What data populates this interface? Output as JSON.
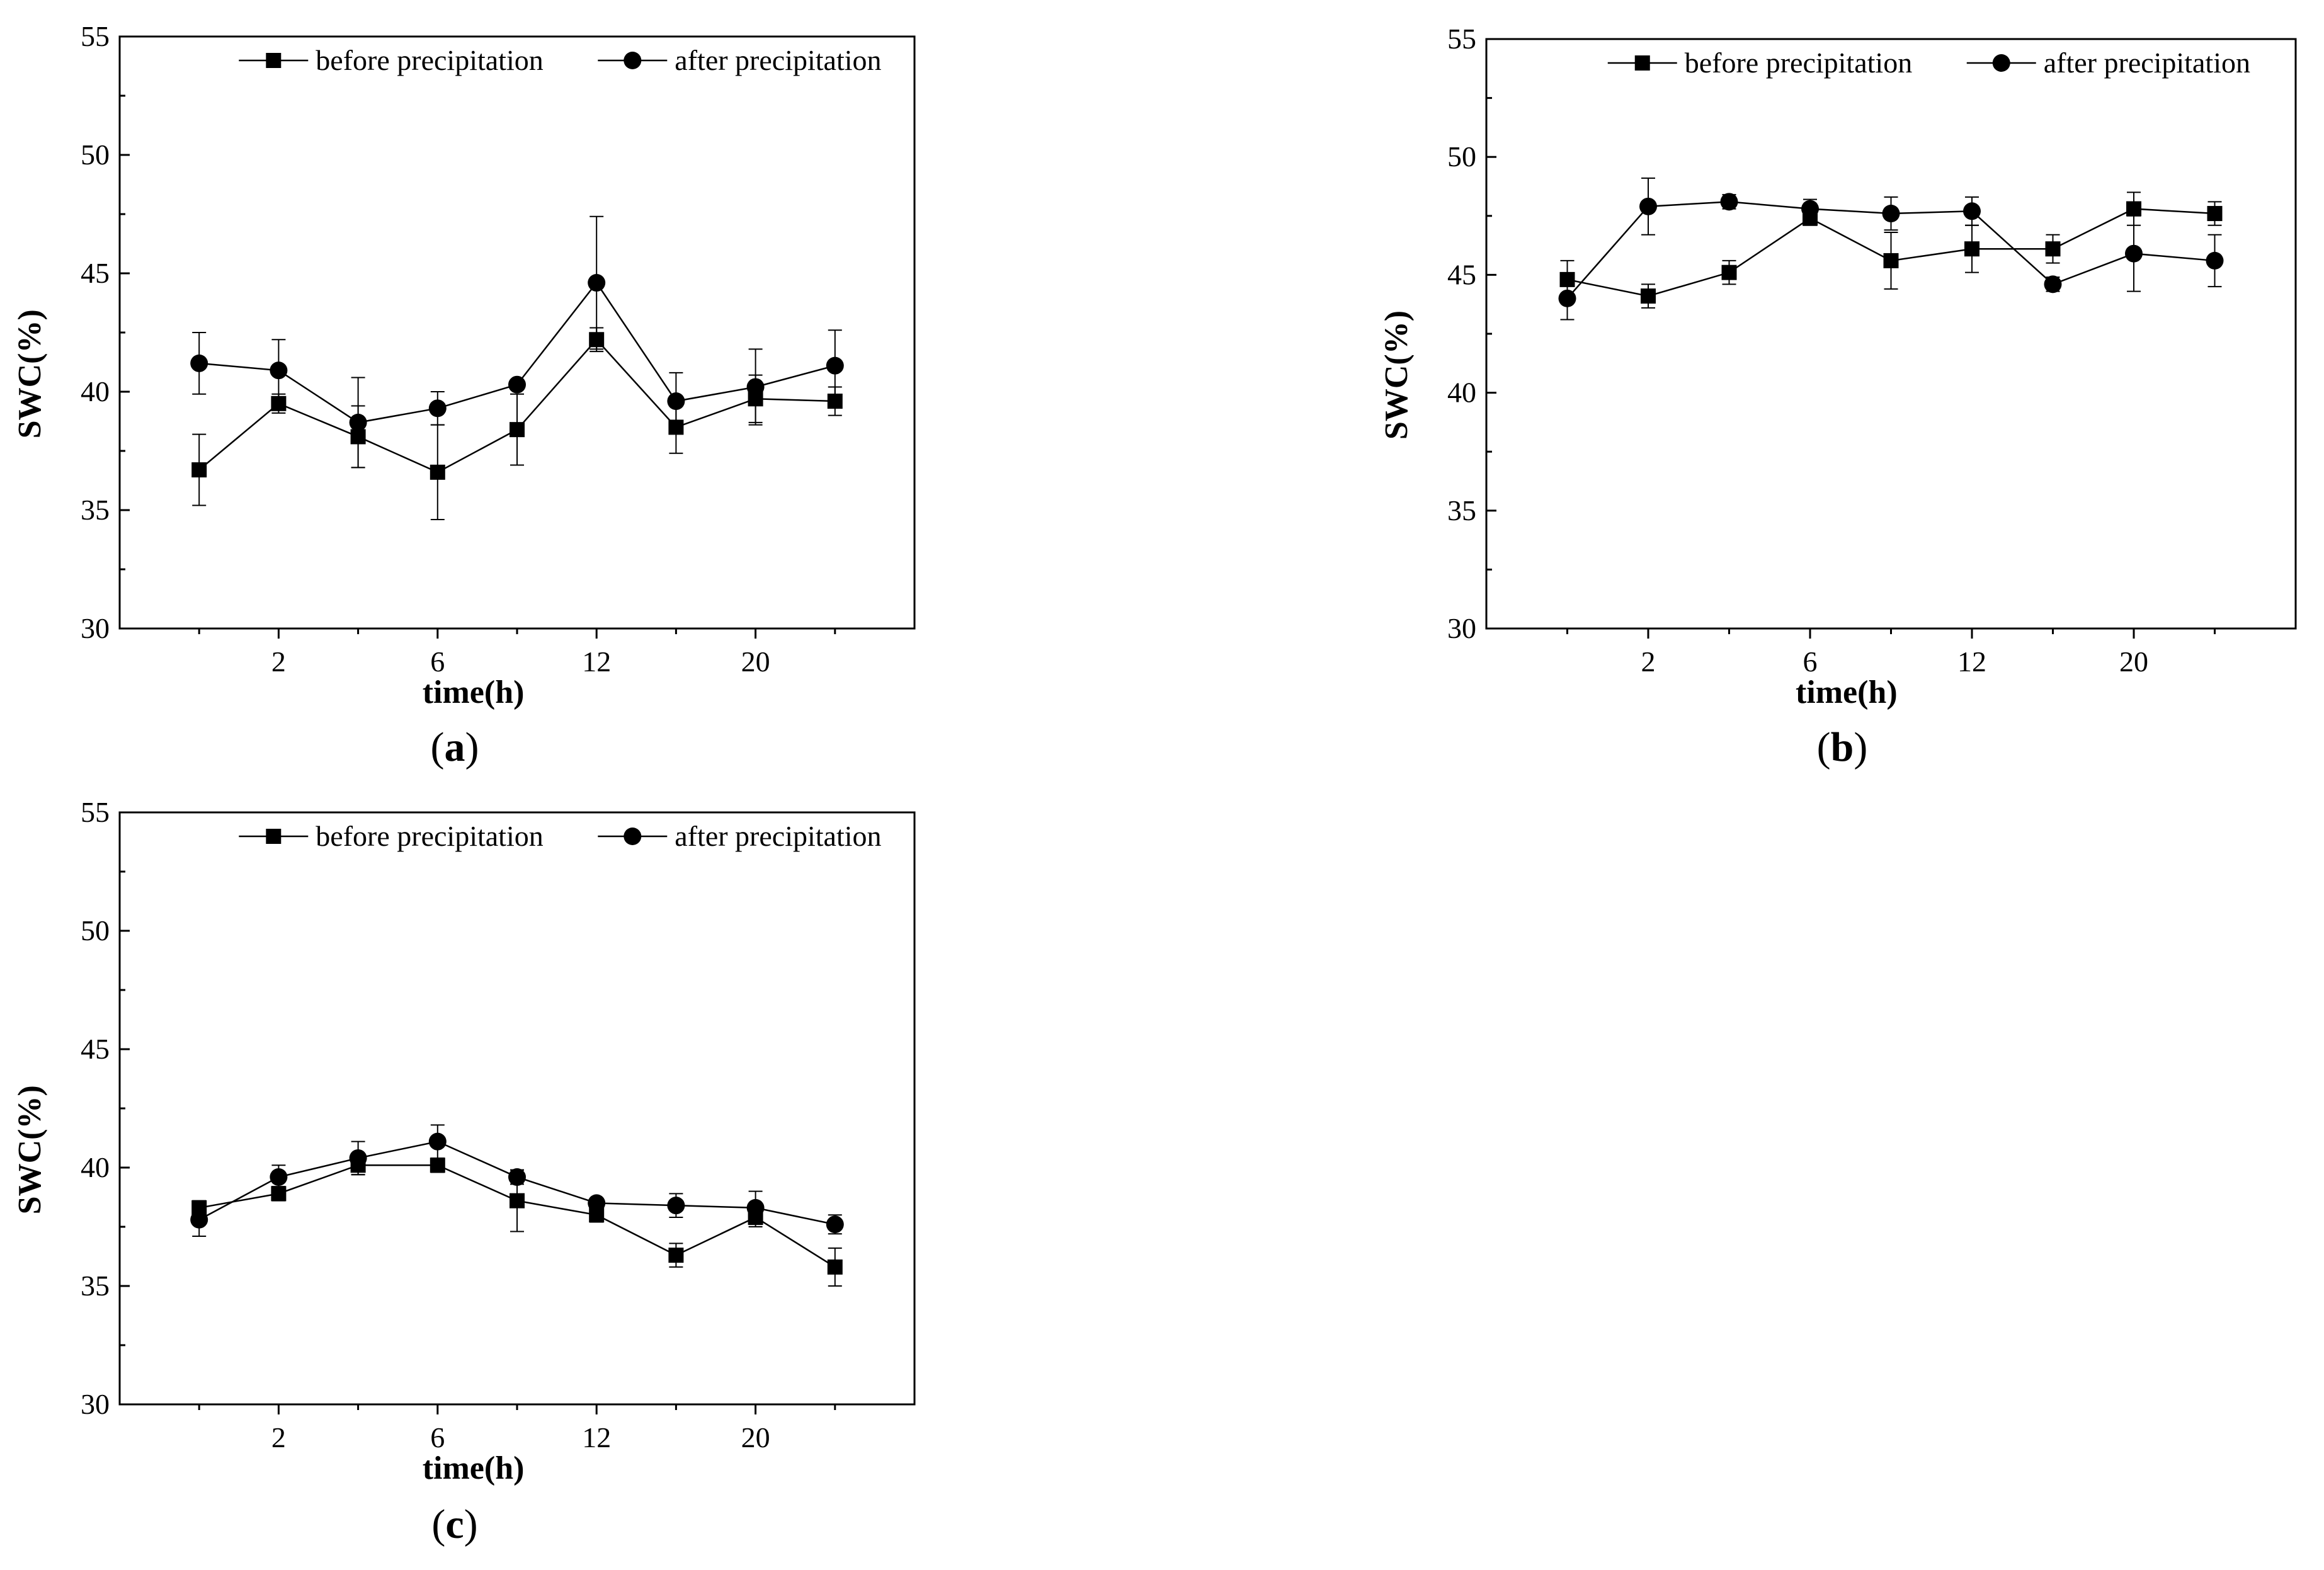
{
  "figure": {
    "panel_count": 3
  },
  "chart_data": [
    {
      "id": "a",
      "panel_label": "a",
      "type": "line",
      "title": "",
      "xlabel": "time(h)",
      "ylabel": "SWC(%)",
      "ylim": [
        30,
        55
      ],
      "yticks": [
        30,
        35,
        40,
        45,
        50,
        55
      ],
      "x": [
        0,
        1,
        2,
        3,
        4,
        5,
        6,
        7,
        8
      ],
      "xlim": [
        -1,
        9
      ],
      "xticks": [
        {
          "x": 1,
          "label": "2"
        },
        {
          "x": 3,
          "label": "6"
        },
        {
          "x": 5,
          "label": "12"
        },
        {
          "x": 7,
          "label": "20"
        }
      ],
      "minor_xticks": [
        0,
        2,
        4,
        6,
        8
      ],
      "legend": "top",
      "series": [
        {
          "name": "before precipitation",
          "marker": "square",
          "values": [
            36.7,
            39.5,
            38.1,
            36.6,
            38.4,
            42.2,
            38.5,
            39.7,
            39.6
          ],
          "errors": [
            1.5,
            0.4,
            1.3,
            2.0,
            1.5,
            0.5,
            1.1,
            1.0,
            0.6
          ]
        },
        {
          "name": "after precipitation",
          "marker": "circle",
          "values": [
            41.2,
            40.9,
            38.7,
            39.3,
            40.3,
            44.6,
            39.6,
            40.2,
            41.1
          ],
          "errors": [
            1.3,
            1.3,
            1.9,
            0.7,
            0.2,
            2.8,
            1.2,
            1.6,
            1.5
          ]
        }
      ]
    },
    {
      "id": "b",
      "panel_label": "b",
      "type": "line",
      "title": "",
      "xlabel": "time(h)",
      "ylabel": "SWC(%)",
      "ylim": [
        30,
        55
      ],
      "yticks": [
        30,
        35,
        40,
        45,
        50,
        55
      ],
      "x": [
        0,
        1,
        2,
        3,
        4,
        5,
        6,
        7,
        8
      ],
      "xlim": [
        -1,
        9
      ],
      "xticks": [
        {
          "x": 1,
          "label": "2"
        },
        {
          "x": 3,
          "label": "6"
        },
        {
          "x": 5,
          "label": "12"
        },
        {
          "x": 7,
          "label": "20"
        }
      ],
      "minor_xticks": [
        0,
        2,
        4,
        6,
        8
      ],
      "legend": "top",
      "series": [
        {
          "name": "before precipitation",
          "marker": "square",
          "values": [
            44.8,
            44.1,
            45.1,
            47.4,
            45.6,
            46.1,
            46.1,
            47.8,
            47.6
          ],
          "errors": [
            0.8,
            0.5,
            0.5,
            0.3,
            1.2,
            1.0,
            0.6,
            0.7,
            0.5
          ]
        },
        {
          "name": "after precipitation",
          "marker": "circle",
          "values": [
            44.0,
            47.9,
            48.1,
            47.8,
            47.6,
            47.7,
            44.6,
            45.9,
            45.6
          ],
          "errors": [
            0.9,
            1.2,
            0.3,
            0.4,
            0.7,
            0.6,
            0.3,
            1.6,
            1.1
          ]
        }
      ]
    },
    {
      "id": "c",
      "panel_label": "c",
      "type": "line",
      "title": "",
      "xlabel": "time(h)",
      "ylabel": "SWC(%)",
      "ylim": [
        30,
        55
      ],
      "yticks": [
        30,
        35,
        40,
        45,
        50,
        55
      ],
      "x": [
        0,
        1,
        2,
        3,
        4,
        5,
        6,
        7,
        8
      ],
      "xlim": [
        -1,
        9
      ],
      "xticks": [
        {
          "x": 1,
          "label": "2"
        },
        {
          "x": 3,
          "label": "6"
        },
        {
          "x": 5,
          "label": "12"
        },
        {
          "x": 7,
          "label": "20"
        }
      ],
      "minor_xticks": [
        0,
        2,
        4,
        6,
        8
      ],
      "legend": "top",
      "series": [
        {
          "name": "before precipitation",
          "marker": "square",
          "values": [
            38.3,
            38.9,
            40.1,
            40.1,
            38.6,
            38.0,
            36.3,
            37.9,
            35.8
          ],
          "errors": [
            0.3,
            0.3,
            0.4,
            0.3,
            1.3,
            0.3,
            0.5,
            0.4,
            0.8
          ]
        },
        {
          "name": "after precipitation",
          "marker": "circle",
          "values": [
            37.8,
            39.6,
            40.4,
            41.1,
            39.6,
            38.5,
            38.4,
            38.3,
            37.6
          ],
          "errors": [
            0.7,
            0.5,
            0.7,
            0.7,
            0.3,
            0.2,
            0.5,
            0.7,
            0.4
          ]
        }
      ]
    }
  ]
}
